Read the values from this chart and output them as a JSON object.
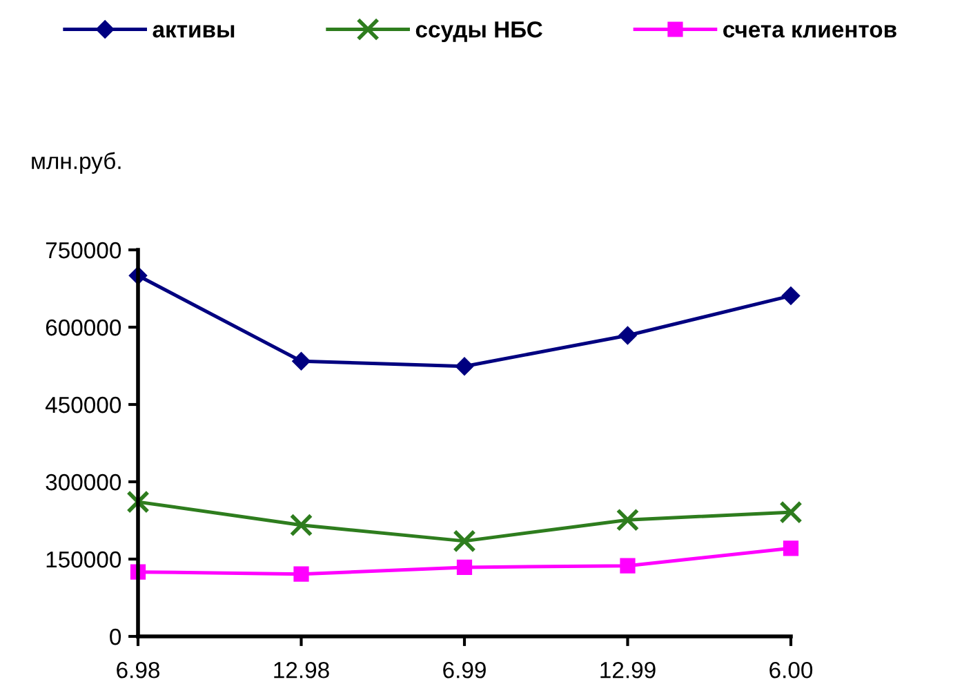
{
  "chart_data": {
    "type": "line",
    "ylabel": "млн.руб.",
    "categories": [
      "6.98",
      "12.98",
      "6.99",
      "12.99",
      "6.00"
    ],
    "ylim": [
      0,
      750000
    ],
    "yticks": [
      0,
      150000,
      300000,
      450000,
      600000,
      750000
    ],
    "grid": false,
    "legend": "top",
    "series": [
      {
        "name": "активы",
        "color": "#000080",
        "marker": "diamond",
        "values": [
          700000,
          534000,
          524000,
          584000,
          661000
        ]
      },
      {
        "name": "ссуды НБС",
        "color": "#2e7d1e",
        "marker": "cross",
        "values": [
          261000,
          216000,
          185000,
          226000,
          241000
        ]
      },
      {
        "name": "счета клиентов",
        "color": "#ff00ff",
        "marker": "square",
        "values": [
          125000,
          121000,
          134000,
          137000,
          171000
        ]
      }
    ]
  }
}
